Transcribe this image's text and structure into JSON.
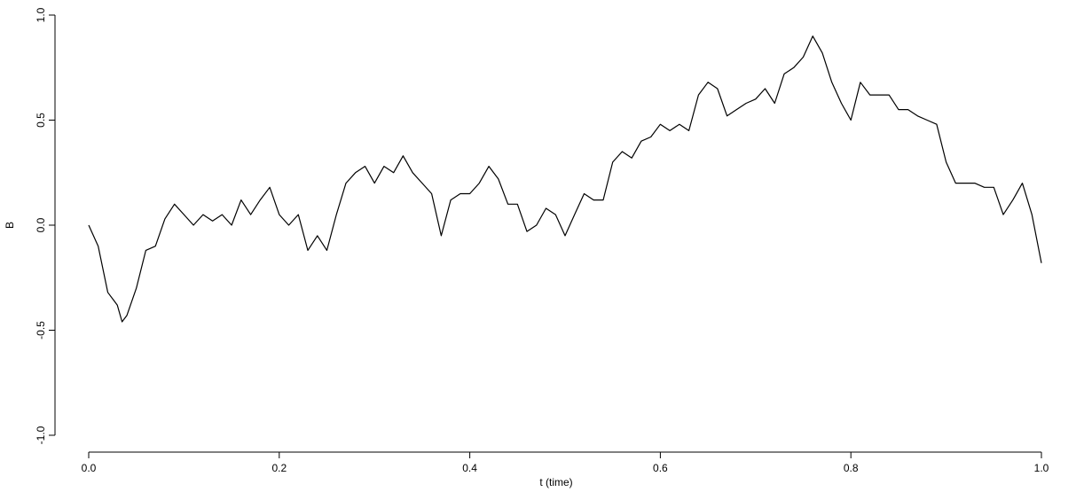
{
  "chart_data": {
    "type": "line",
    "x_label": "t  (time)",
    "y_label": "B",
    "x": [
      0,
      0.01,
      0.02,
      0.03,
      0.035,
      0.04,
      0.05,
      0.06,
      0.07,
      0.08,
      0.09,
      0.1,
      0.11,
      0.12,
      0.13,
      0.14,
      0.15,
      0.16,
      0.17,
      0.18,
      0.19,
      0.2,
      0.21,
      0.22,
      0.23,
      0.24,
      0.25,
      0.26,
      0.27,
      0.28,
      0.29,
      0.3,
      0.31,
      0.32,
      0.33,
      0.34,
      0.35,
      0.36,
      0.37,
      0.38,
      0.39,
      0.4,
      0.41,
      0.42,
      0.43,
      0.44,
      0.45,
      0.46,
      0.47,
      0.48,
      0.49,
      0.5,
      0.51,
      0.52,
      0.53,
      0.54,
      0.55,
      0.56,
      0.57,
      0.58,
      0.59,
      0.6,
      0.61,
      0.62,
      0.63,
      0.64,
      0.65,
      0.66,
      0.67,
      0.68,
      0.69,
      0.7,
      0.71,
      0.72,
      0.73,
      0.74,
      0.75,
      0.76,
      0.77,
      0.78,
      0.79,
      0.8,
      0.81,
      0.82,
      0.83,
      0.84,
      0.85,
      0.86,
      0.87,
      0.88,
      0.89,
      0.9,
      0.91,
      0.92,
      0.93,
      0.94,
      0.95,
      0.96,
      0.97,
      0.98,
      0.99,
      1.0
    ],
    "values": [
      0,
      -0.1,
      -0.32,
      -0.38,
      -0.46,
      -0.43,
      -0.3,
      -0.12,
      -0.1,
      0.03,
      0.1,
      0.05,
      0.0,
      0.05,
      0.02,
      0.05,
      0.0,
      0.12,
      0.05,
      0.12,
      0.18,
      0.05,
      0.0,
      0.05,
      -0.12,
      -0.05,
      -0.12,
      0.05,
      0.2,
      0.25,
      0.28,
      0.2,
      0.28,
      0.25,
      0.33,
      0.25,
      0.2,
      0.15,
      -0.05,
      0.12,
      0.15,
      0.15,
      0.2,
      0.28,
      0.22,
      0.1,
      0.1,
      -0.03,
      0.0,
      0.08,
      0.05,
      -0.05,
      0.05,
      0.15,
      0.12,
      0.12,
      0.3,
      0.35,
      0.32,
      0.4,
      0.42,
      0.48,
      0.45,
      0.48,
      0.45,
      0.62,
      0.68,
      0.65,
      0.52,
      0.55,
      0.58,
      0.6,
      0.65,
      0.58,
      0.72,
      0.75,
      0.8,
      0.9,
      0.82,
      0.68,
      0.58,
      0.5,
      0.68,
      0.62,
      0.62,
      0.62,
      0.55,
      0.55,
      0.52,
      0.5,
      0.48,
      0.3,
      0.2,
      0.2,
      0.2,
      0.18,
      0.18,
      0.05,
      0.12,
      0.2,
      0.05,
      -0.18
    ],
    "color": "#000000",
    "xlim": [
      0,
      1
    ],
    "ylim": [
      -1,
      1
    ],
    "xticks": [
      {
        "value": 0,
        "label": "0.0"
      },
      0.2,
      0.4,
      0.6,
      0.8,
      {
        "value": 1,
        "label": "1.0"
      }
    ],
    "yticks": [
      {
        "value": -1,
        "label": "-1.0"
      },
      -0.5,
      {
        "value": 0,
        "label": "0.0"
      },
      0.5,
      {
        "value": 1,
        "label": "1.0"
      }
    ]
  }
}
